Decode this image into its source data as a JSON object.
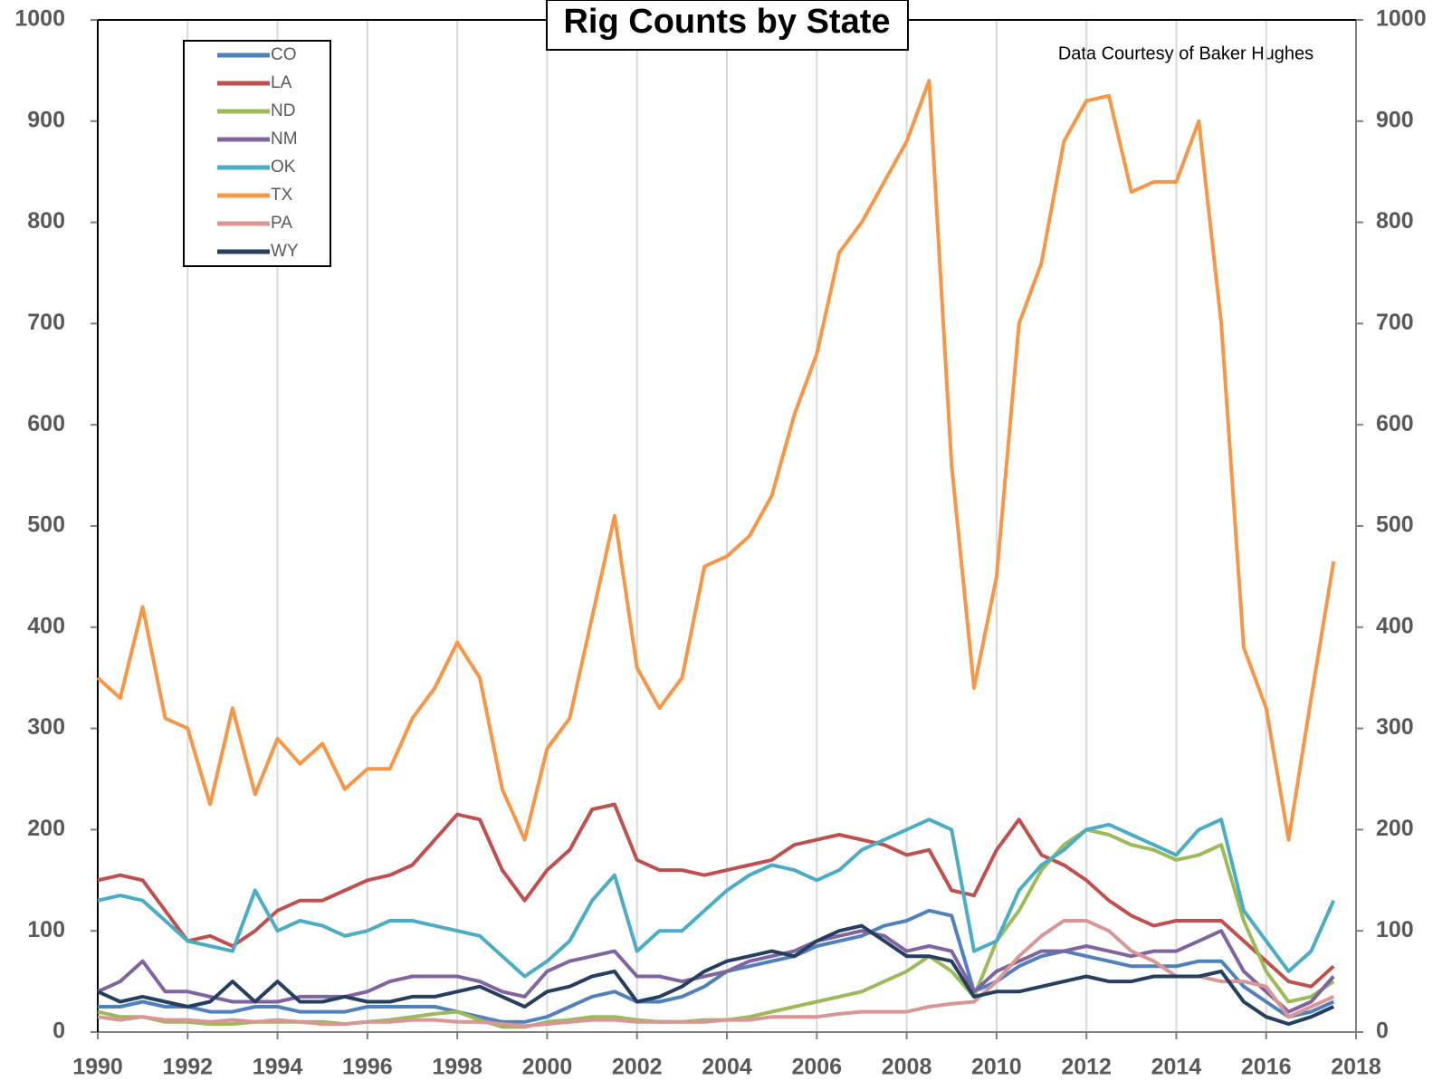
{
  "chart_data": {
    "type": "line",
    "title": "Rig Counts by State",
    "annotation": "Data Courtesy of Baker Hughes",
    "x": [
      1990,
      1990.5,
      1991,
      1991.5,
      1992,
      1992.5,
      1993,
      1993.5,
      1994,
      1994.5,
      1995,
      1995.5,
      1996,
      1996.5,
      1997,
      1997.5,
      1998,
      1998.5,
      1999,
      1999.5,
      2000,
      2000.5,
      2001,
      2001.5,
      2002,
      2002.5,
      2003,
      2003.5,
      2004,
      2004.5,
      2005,
      2005.5,
      2006,
      2006.5,
      2007,
      2007.5,
      2008,
      2008.5,
      2009,
      2009.5,
      2010,
      2010.5,
      2011,
      2011.5,
      2012,
      2012.5,
      2013,
      2013.5,
      2014,
      2014.5,
      2015,
      2015.5,
      2016,
      2016.5,
      2017,
      2017.5
    ],
    "series": [
      {
        "name": "CO",
        "color": "#4f81bd",
        "values": [
          25,
          25,
          30,
          25,
          25,
          20,
          20,
          25,
          25,
          20,
          20,
          20,
          25,
          25,
          25,
          25,
          20,
          15,
          10,
          10,
          15,
          25,
          35,
          40,
          30,
          30,
          35,
          45,
          60,
          65,
          70,
          75,
          85,
          90,
          95,
          105,
          110,
          120,
          115,
          40,
          50,
          65,
          75,
          80,
          75,
          70,
          65,
          65,
          65,
          70,
          70,
          45,
          30,
          15,
          20,
          30
        ]
      },
      {
        "name": "LA",
        "color": "#c0504d",
        "values": [
          150,
          155,
          150,
          120,
          90,
          95,
          85,
          100,
          120,
          130,
          130,
          140,
          150,
          155,
          165,
          190,
          215,
          210,
          160,
          130,
          160,
          180,
          220,
          225,
          170,
          160,
          160,
          155,
          160,
          165,
          170,
          185,
          190,
          195,
          190,
          185,
          175,
          180,
          140,
          135,
          180,
          210,
          175,
          165,
          150,
          130,
          115,
          105,
          110,
          110,
          110,
          90,
          70,
          50,
          45,
          65
        ]
      },
      {
        "name": "ND",
        "color": "#9bbb59",
        "values": [
          20,
          15,
          15,
          10,
          10,
          8,
          8,
          10,
          10,
          10,
          10,
          8,
          10,
          12,
          15,
          18,
          20,
          12,
          5,
          5,
          10,
          12,
          15,
          15,
          12,
          10,
          10,
          12,
          12,
          15,
          20,
          25,
          30,
          35,
          40,
          50,
          60,
          75,
          60,
          35,
          90,
          120,
          160,
          185,
          200,
          195,
          185,
          180,
          170,
          175,
          185,
          110,
          60,
          30,
          35,
          50
        ]
      },
      {
        "name": "NM",
        "color": "#8064a2",
        "values": [
          40,
          50,
          70,
          40,
          40,
          35,
          30,
          30,
          30,
          35,
          35,
          35,
          40,
          50,
          55,
          55,
          55,
          50,
          40,
          35,
          60,
          70,
          75,
          80,
          55,
          55,
          50,
          55,
          60,
          70,
          75,
          80,
          90,
          95,
          100,
          95,
          80,
          85,
          80,
          40,
          60,
          70,
          80,
          80,
          85,
          80,
          75,
          80,
          80,
          90,
          100,
          60,
          40,
          20,
          30,
          55
        ]
      },
      {
        "name": "OK",
        "color": "#4bacc6",
        "values": [
          130,
          135,
          130,
          110,
          90,
          85,
          80,
          140,
          100,
          110,
          105,
          95,
          100,
          110,
          110,
          105,
          100,
          95,
          75,
          55,
          70,
          90,
          130,
          155,
          80,
          100,
          100,
          120,
          140,
          155,
          165,
          160,
          150,
          160,
          180,
          190,
          200,
          210,
          200,
          80,
          90,
          140,
          165,
          180,
          200,
          205,
          195,
          185,
          175,
          200,
          210,
          120,
          90,
          60,
          80,
          130
        ]
      },
      {
        "name": "TX",
        "color": "#f79646",
        "values": [
          350,
          330,
          420,
          310,
          300,
          225,
          320,
          235,
          290,
          265,
          285,
          240,
          260,
          260,
          310,
          340,
          385,
          350,
          240,
          190,
          280,
          310,
          410,
          510,
          360,
          320,
          350,
          460,
          470,
          490,
          530,
          610,
          670,
          770,
          800,
          840,
          880,
          940,
          560,
          340,
          450,
          700,
          760,
          880,
          920,
          925,
          830,
          840,
          840,
          900,
          700,
          380,
          320,
          190,
          330,
          465
        ]
      },
      {
        "name": "PA",
        "color": "#d99694",
        "values": [
          15,
          12,
          15,
          12,
          12,
          10,
          12,
          10,
          12,
          10,
          8,
          8,
          10,
          10,
          12,
          12,
          10,
          10,
          8,
          6,
          8,
          10,
          12,
          12,
          10,
          10,
          10,
          10,
          12,
          12,
          15,
          15,
          15,
          18,
          20,
          20,
          20,
          25,
          28,
          30,
          50,
          75,
          95,
          110,
          110,
          100,
          80,
          70,
          55,
          55,
          50,
          50,
          45,
          15,
          25,
          35
        ]
      },
      {
        "name": "WY",
        "color": "#243f60",
        "values": [
          40,
          30,
          35,
          30,
          25,
          30,
          50,
          30,
          50,
          30,
          30,
          35,
          30,
          30,
          35,
          35,
          40,
          45,
          35,
          25,
          40,
          45,
          55,
          60,
          30,
          35,
          45,
          60,
          70,
          75,
          80,
          75,
          90,
          100,
          105,
          90,
          75,
          75,
          70,
          35,
          40,
          40,
          45,
          50,
          55,
          50,
          50,
          55,
          55,
          55,
          60,
          30,
          15,
          8,
          15,
          25
        ]
      }
    ],
    "xlim": [
      1990,
      2018
    ],
    "xticks": [
      1990,
      1992,
      1994,
      1996,
      1998,
      2000,
      2002,
      2004,
      2006,
      2008,
      2010,
      2012,
      2014,
      2016,
      2018
    ],
    "ylim": [
      0,
      1000
    ],
    "yticks": [
      0,
      100,
      200,
      300,
      400,
      500,
      600,
      700,
      800,
      900,
      1000
    ],
    "y2lim": [
      0,
      1000
    ],
    "y2ticks": [
      0,
      100,
      200,
      300,
      400,
      500,
      600,
      700,
      800,
      900,
      1000
    ],
    "grid": "x",
    "legend": "upper left"
  }
}
